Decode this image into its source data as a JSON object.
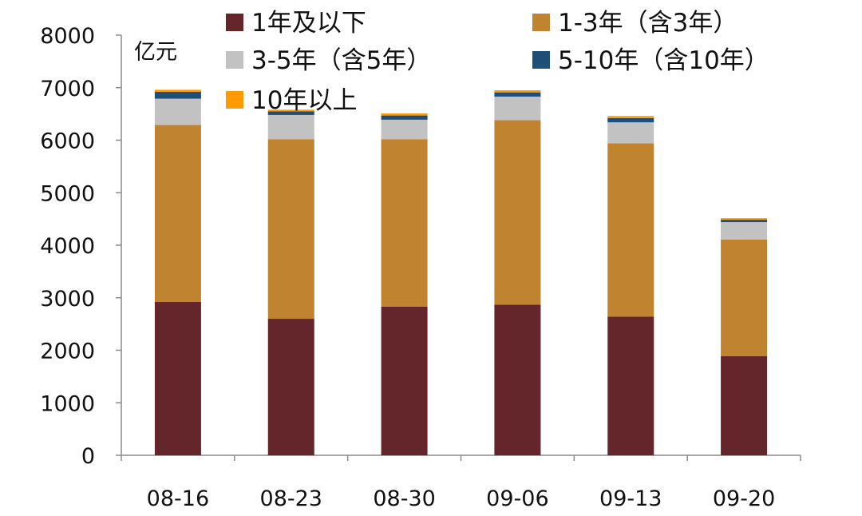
{
  "chart_data": {
    "type": "bar",
    "stacked": true,
    "unit_label": "亿元",
    "title": "",
    "xlabel": "",
    "ylabel": "",
    "categories": [
      "08-16",
      "08-23",
      "08-30",
      "09-06",
      "09-13",
      "09-20"
    ],
    "ylim": [
      0,
      8000
    ],
    "yticks": [
      0,
      1000,
      2000,
      3000,
      4000,
      5000,
      6000,
      7000,
      8000
    ],
    "grid": false,
    "legend_position": "top",
    "series": [
      {
        "name": "1年及以下",
        "color": "#64262a",
        "values": [
          2920,
          2600,
          2830,
          2870,
          2640,
          1890
        ]
      },
      {
        "name": "1-3年（含3年）",
        "color": "#c08430",
        "values": [
          3370,
          3420,
          3190,
          3510,
          3300,
          2220
        ]
      },
      {
        "name": "3-5年（含5年）",
        "color": "#c2c2c2",
        "values": [
          500,
          460,
          370,
          450,
          400,
          330
        ]
      },
      {
        "name": "5-10年（含10年）",
        "color": "#1f4e79",
        "values": [
          130,
          70,
          80,
          80,
          80,
          45
        ]
      },
      {
        "name": "10年以上",
        "color": "#ff9a00",
        "values": [
          40,
          30,
          40,
          40,
          40,
          30
        ]
      }
    ]
  }
}
